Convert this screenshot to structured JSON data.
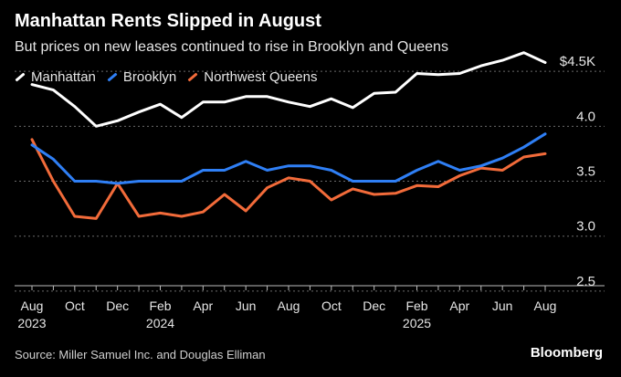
{
  "chart_data": {
    "type": "line",
    "title": "Manhattan Rents Slipped in August",
    "subtitle": "But prices on new leases continued to rise in Brooklyn and Queens",
    "x": [
      "Aug 2023",
      "Sep 2023",
      "Oct 2023",
      "Nov 2023",
      "Dec 2023",
      "Jan 2024",
      "Feb 2024",
      "Mar 2024",
      "Apr 2024",
      "May 2024",
      "Jun 2024",
      "Jul 2024",
      "Aug 2024",
      "Sep 2024",
      "Oct 2024",
      "Nov 2024",
      "Dec 2024",
      "Jan 2025",
      "Feb 2025",
      "Mar 2025",
      "Apr 2025",
      "May 2025",
      "Jun 2025",
      "Jul 2025",
      "Aug 2025"
    ],
    "x_ticks": [
      {
        "index": 0,
        "label": "Aug",
        "year": "2023"
      },
      {
        "index": 2,
        "label": "Oct",
        "year": ""
      },
      {
        "index": 4,
        "label": "Dec",
        "year": ""
      },
      {
        "index": 6,
        "label": "Feb",
        "year": "2024"
      },
      {
        "index": 8,
        "label": "Apr",
        "year": ""
      },
      {
        "index": 10,
        "label": "Jun",
        "year": ""
      },
      {
        "index": 12,
        "label": "Aug",
        "year": ""
      },
      {
        "index": 14,
        "label": "Oct",
        "year": ""
      },
      {
        "index": 16,
        "label": "Dec",
        "year": ""
      },
      {
        "index": 18,
        "label": "Feb",
        "year": "2025"
      },
      {
        "index": 20,
        "label": "Apr",
        "year": ""
      },
      {
        "index": 22,
        "label": "Jun",
        "year": ""
      },
      {
        "index": 24,
        "label": "Aug",
        "year": ""
      }
    ],
    "series": [
      {
        "name": "Manhattan",
        "color": "#ffffff",
        "values": [
          4.38,
          4.33,
          4.18,
          4.0,
          4.05,
          4.13,
          4.2,
          4.08,
          4.22,
          4.22,
          4.27,
          4.27,
          4.22,
          4.18,
          4.25,
          4.17,
          4.3,
          4.31,
          4.48,
          4.47,
          4.48,
          4.55,
          4.6,
          4.67,
          4.58
        ]
      },
      {
        "name": "Brooklyn",
        "color": "#2f7ff5",
        "values": [
          3.83,
          3.7,
          3.5,
          3.5,
          3.48,
          3.5,
          3.5,
          3.5,
          3.6,
          3.6,
          3.68,
          3.6,
          3.64,
          3.64,
          3.6,
          3.5,
          3.5,
          3.5,
          3.6,
          3.68,
          3.6,
          3.64,
          3.71,
          3.81,
          3.93
        ]
      },
      {
        "name": "Northwest Queens",
        "color": "#f26b3a",
        "values": [
          3.88,
          3.5,
          3.18,
          3.16,
          3.48,
          3.18,
          3.21,
          3.18,
          3.22,
          3.38,
          3.23,
          3.44,
          3.53,
          3.5,
          3.33,
          3.43,
          3.38,
          3.39,
          3.46,
          3.45,
          3.55,
          3.62,
          3.6,
          3.72,
          3.75
        ]
      }
    ],
    "y_ticks": [
      {
        "value": 4.5,
        "label": "$4.5K"
      },
      {
        "value": 4.0,
        "label": "4.0"
      },
      {
        "value": 3.5,
        "label": "3.5"
      },
      {
        "value": 3.0,
        "label": "3.0"
      },
      {
        "value": 2.5,
        "label": "2.5"
      }
    ],
    "ylim": [
      2.2,
      4.85
    ],
    "grid": true,
    "legend_position": "top-left",
    "source": "Source: Miller Samuel Inc. and Douglas Elliman",
    "brand": "Bloomberg"
  }
}
